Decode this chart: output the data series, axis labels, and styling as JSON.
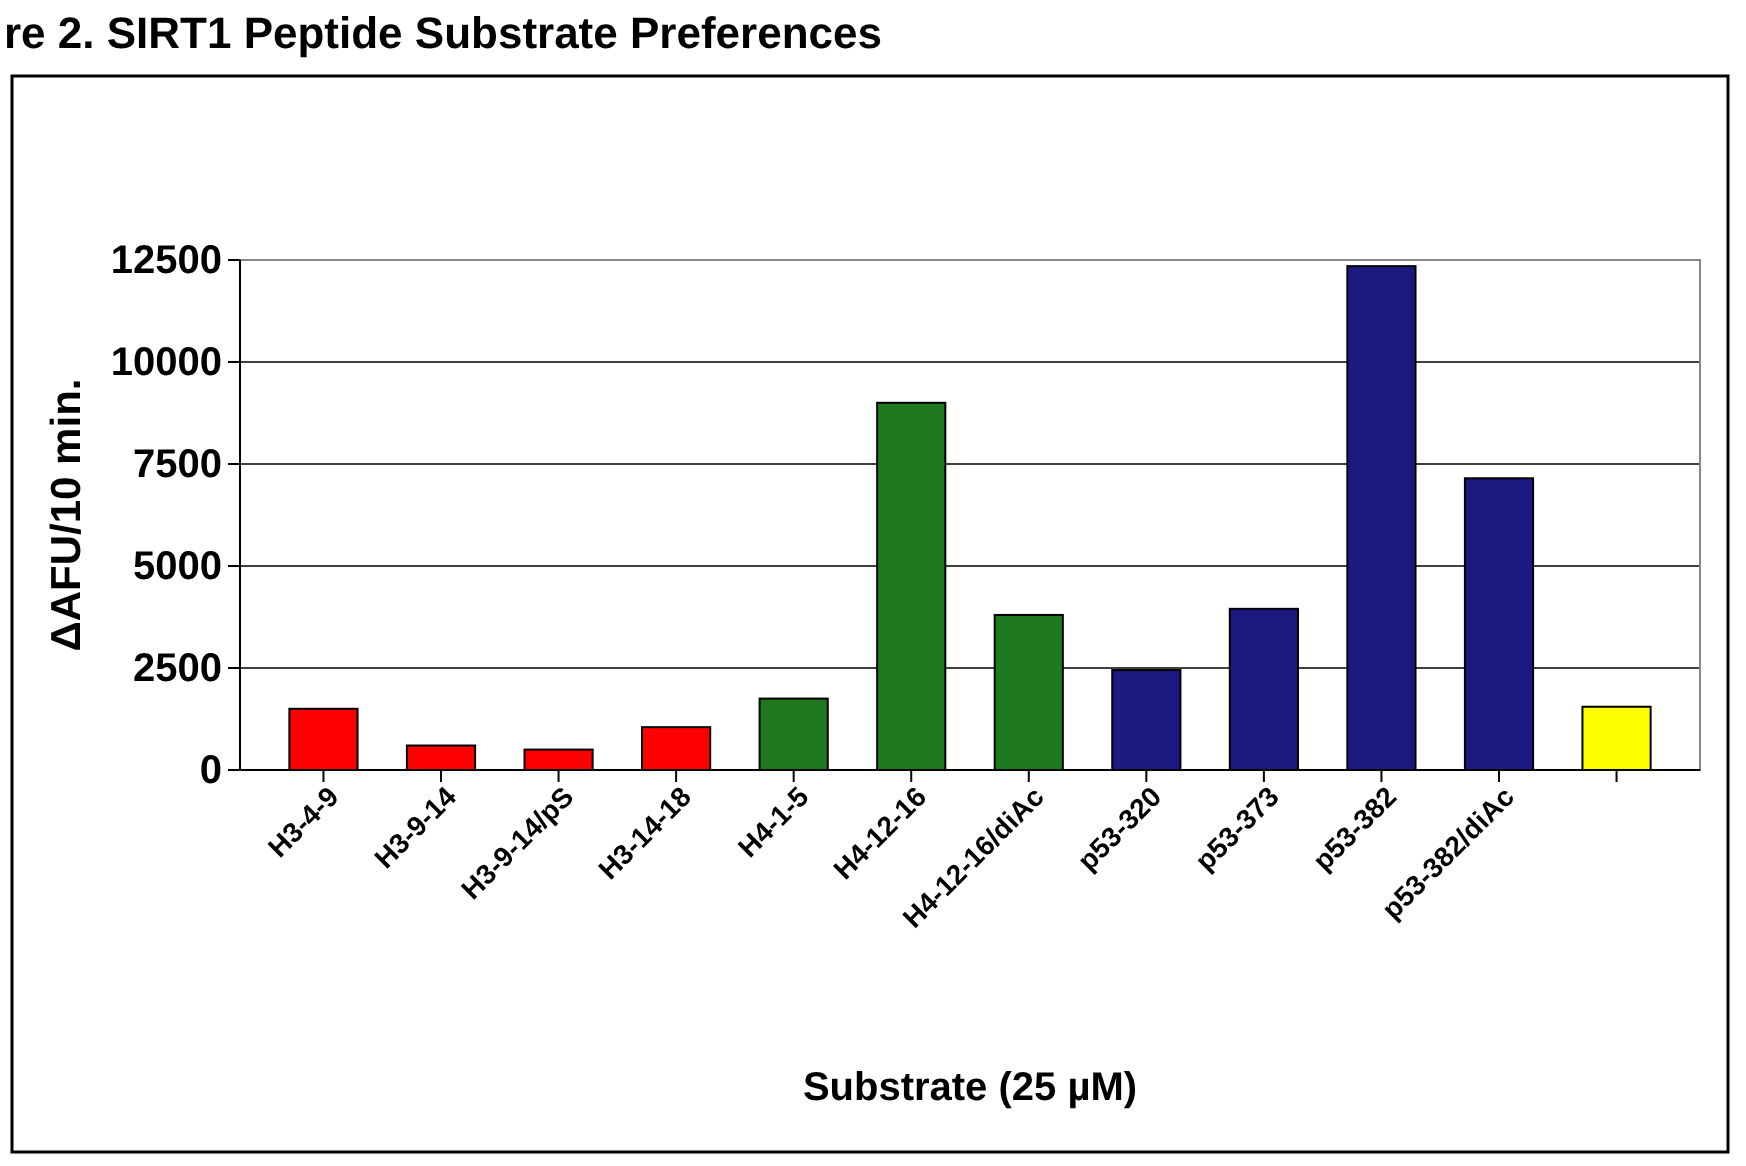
{
  "chart_data": {
    "type": "bar",
    "title": "re 2.   SIRT1 Peptide Substrate Preferences",
    "xlabel": "Substrate (25 µM)",
    "ylabel": "ΔAFU/10 min.",
    "categories": [
      "H3-4-9",
      "H3-9-14",
      "H3-9-14/pS",
      "H3-14-18",
      "H4-1-5",
      "H4-12-16",
      "H4-12-16/diAc",
      "p53-320",
      "p53-373",
      "p53-382",
      "p53-382/diAc",
      null
    ],
    "values": [
      1500,
      600,
      500,
      1050,
      1750,
      9000,
      3800,
      2450,
      3950,
      12350,
      7150,
      1550
    ],
    "colors": [
      "#ff0000",
      "#ff0000",
      "#ff0000",
      "#ff0000",
      "#1f7a1f",
      "#1f7a1f",
      "#1f7a1f",
      "#1a1a80",
      "#1a1a80",
      "#1a1a80",
      "#1a1a80",
      "#ffff00"
    ],
    "ylim": [
      0,
      12500
    ],
    "yticks": [
      0,
      2500,
      5000,
      7500,
      10000,
      12500
    ],
    "grid": "y"
  }
}
